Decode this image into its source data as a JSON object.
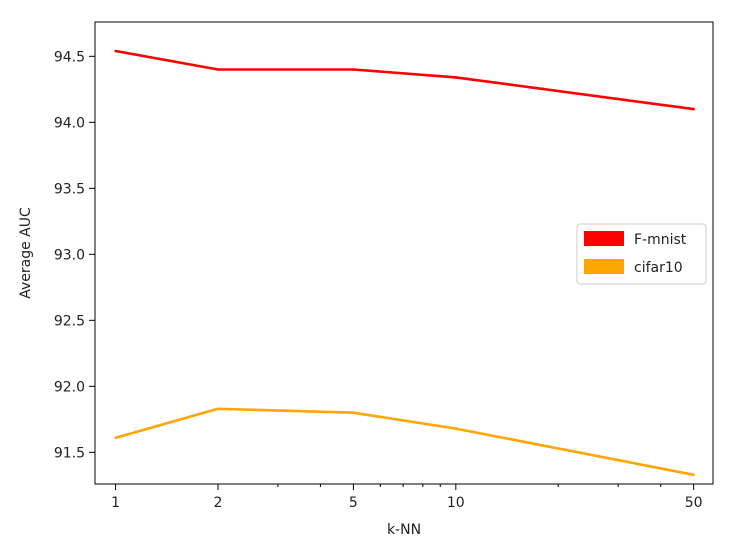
{
  "chart_data": {
    "type": "line",
    "xlabel": "k-NN",
    "ylabel": "Average AUC",
    "xscale": "log",
    "x": [
      1,
      2,
      5,
      10,
      50
    ],
    "x_tick_labels": [
      "1",
      "2",
      "5",
      "10",
      "50"
    ],
    "xlim": [
      0.87,
      57
    ],
    "ylim": [
      91.26,
      94.76
    ],
    "y_ticks": [
      "91.5",
      "92.0",
      "92.5",
      "93.0",
      "93.5",
      "94.0",
      "94.5"
    ],
    "series": [
      {
        "name": "F-mnist",
        "color": "#ff0000",
        "values": [
          94.54,
          94.4,
          94.4,
          94.34,
          94.1
        ]
      },
      {
        "name": "cifar10",
        "color": "#ffa500",
        "values": [
          91.61,
          91.83,
          91.8,
          91.68,
          91.33
        ]
      }
    ],
    "grid": false,
    "legend_position": "center-right"
  }
}
